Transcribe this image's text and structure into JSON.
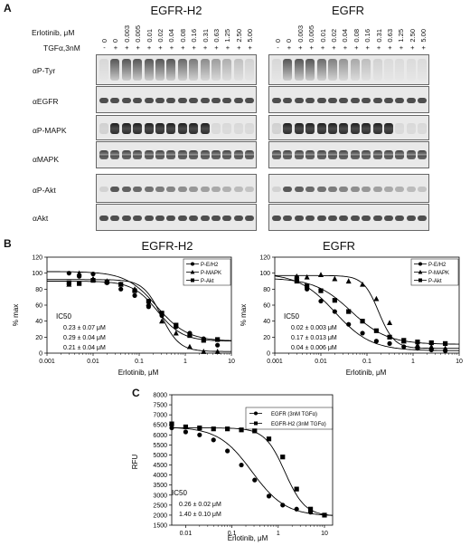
{
  "panelA": {
    "letter": "A",
    "erlotinib_label": "Erlotinib, μM",
    "tgf_label": "TGFα,3nM",
    "concentrations": [
      "0",
      "0",
      "0.003",
      "0.005",
      "0.01",
      "0.02",
      "0.04",
      "0.08",
      "0.16",
      "0.31",
      "0.63",
      "1.25",
      "2.50",
      "5.00"
    ],
    "tgf_signs": [
      "-",
      "+",
      "+",
      "+",
      "+",
      "+",
      "+",
      "+",
      "+",
      "+",
      "+",
      "+",
      "+",
      "+"
    ],
    "left_title": "EGFR-H2",
    "right_title": "EGFR",
    "row_labels": [
      "αP-Tyr",
      "αEGFR",
      "αP-MAPK",
      "αMAPK",
      "αP-Akt",
      "αAkt"
    ]
  },
  "panelB": {
    "letter": "B",
    "left_title": "EGFR-H2",
    "right_title": "EGFR",
    "ylabel": "% max",
    "xlabel": "Erlotinib, μM",
    "legend": [
      "P-E/H2",
      "P-MAPK",
      "P-Akt"
    ],
    "legend_right": [
      "P-E/H2",
      "P-MAPK",
      "P-Akt"
    ],
    "ic50_label": "IC50",
    "left_ic50": [
      "0.23 ± 0.07 μM",
      "0.29 ± 0.04 μM",
      "0.21 ± 0.04 μM"
    ],
    "right_ic50": [
      "0.02 ± 0.003 μM",
      "0.17 ± 0.013 μM",
      "0.04 ± 0.006 μM"
    ]
  },
  "panelC": {
    "letter": "C",
    "ylabel": "RFU",
    "xlabel": "Erlotinib, μM",
    "legend": [
      "EGFR (3nM TGFα)",
      "EGFR-H2 (3nM TGFα)"
    ],
    "ic50_label": "IC50",
    "ic50": [
      "0.26 ± 0.02 μM",
      "1.40 ± 0.10 μM"
    ]
  },
  "chart_data": [
    {
      "type": "scatter",
      "title": "EGFR-H2",
      "xlabel": "Erlotinib, μM",
      "ylabel": "% max",
      "x_scale": "log",
      "xlim": [
        0.001,
        10
      ],
      "ylim": [
        0,
        120
      ],
      "x_ticks": [
        "0.001",
        "0.01",
        "0.1",
        "1",
        "10"
      ],
      "y_ticks": [
        "0",
        "20",
        "40",
        "60",
        "80",
        "100",
        "120"
      ],
      "legend_position": "top-right",
      "series": [
        {
          "name": "P-E/H2",
          "marker": "circle",
          "x": [
            0.003,
            0.005,
            0.01,
            0.02,
            0.04,
            0.08,
            0.16,
            0.31,
            0.63,
            1.25,
            2.5,
            5.0
          ],
          "y": [
            100,
            96,
            99,
            88,
            80,
            72,
            58,
            47,
            33,
            25,
            18,
            10
          ]
        },
        {
          "name": "P-MAPK",
          "marker": "triangle",
          "x": [
            0.003,
            0.005,
            0.01,
            0.02,
            0.04,
            0.08,
            0.16,
            0.31,
            0.63,
            1.25,
            2.5,
            5.0
          ],
          "y": [
            86,
            100,
            93,
            90,
            86,
            80,
            62,
            40,
            25,
            8,
            2,
            2
          ]
        },
        {
          "name": "P-Akt",
          "marker": "square",
          "x": [
            0.003,
            0.005,
            0.01,
            0.02,
            0.04,
            0.08,
            0.16,
            0.31,
            0.63,
            1.25,
            2.5,
            5.0
          ],
          "y": [
            88,
            87,
            91,
            89,
            86,
            78,
            65,
            50,
            35,
            22,
            16,
            17
          ]
        }
      ]
    },
    {
      "type": "scatter",
      "title": "EGFR",
      "xlabel": "Erlotinib, μM",
      "ylabel": "% max",
      "x_scale": "log",
      "xlim": [
        0.001,
        10
      ],
      "ylim": [
        0,
        120
      ],
      "x_ticks": [
        "0.001",
        "0.01",
        "0.1",
        "1",
        "10"
      ],
      "y_ticks": [
        "0",
        "20",
        "40",
        "60",
        "80",
        "100",
        "120"
      ],
      "legend_position": "top-right",
      "series": [
        {
          "name": "P-E/H2",
          "marker": "circle",
          "x": [
            0.003,
            0.005,
            0.01,
            0.02,
            0.04,
            0.08,
            0.16,
            0.31,
            0.63,
            1.25,
            2.5,
            5.0
          ],
          "y": [
            95,
            80,
            65,
            52,
            36,
            25,
            15,
            12,
            8,
            6,
            4,
            3
          ]
        },
        {
          "name": "P-MAPK",
          "marker": "triangle",
          "x": [
            0.003,
            0.005,
            0.01,
            0.02,
            0.04,
            0.08,
            0.16,
            0.31,
            0.63,
            1.25,
            2.5,
            5.0
          ],
          "y": [
            96,
            95,
            98,
            93,
            90,
            86,
            68,
            38,
            15,
            10,
            8,
            6
          ]
        },
        {
          "name": "P-Akt",
          "marker": "square",
          "x": [
            0.003,
            0.005,
            0.01,
            0.02,
            0.04,
            0.08,
            0.16,
            0.31,
            0.63,
            1.25,
            2.5,
            5.0
          ],
          "y": [
            90,
            84,
            78,
            66,
            52,
            40,
            28,
            20,
            16,
            14,
            13,
            12
          ]
        }
      ]
    },
    {
      "type": "scatter",
      "title": "",
      "xlabel": "Erlotinib, μM",
      "ylabel": "RFU",
      "x_scale": "log",
      "xlim": [
        0.005,
        15
      ],
      "ylim": [
        1500,
        8000
      ],
      "x_ticks": [
        "0.01",
        "0.1",
        "1",
        "10"
      ],
      "y_ticks": [
        "1500",
        "2000",
        "2500",
        "3000",
        "3500",
        "4000",
        "4500",
        "5000",
        "5500",
        "6000",
        "6500",
        "7000",
        "7500",
        "8000"
      ],
      "legend_position": "top-right",
      "series": [
        {
          "name": "EGFR (3nM TGFα)",
          "marker": "circle",
          "x": [
            0.005,
            0.01,
            0.02,
            0.04,
            0.08,
            0.16,
            0.31,
            0.63,
            1.25,
            2.5,
            5.0,
            10.0
          ],
          "y": [
            6350,
            6150,
            6000,
            5750,
            5200,
            4500,
            3750,
            2950,
            2500,
            2300,
            2150,
            2000
          ]
        },
        {
          "name": "EGFR-H2 (3nM TGFα)",
          "marker": "square",
          "x": [
            0.005,
            0.01,
            0.02,
            0.04,
            0.08,
            0.16,
            0.31,
            0.63,
            1.25,
            2.5,
            5.0,
            10.0
          ],
          "y": [
            6550,
            6400,
            6350,
            6300,
            6300,
            6250,
            6200,
            5800,
            4900,
            3300,
            2300,
            2000
          ]
        }
      ]
    }
  ]
}
